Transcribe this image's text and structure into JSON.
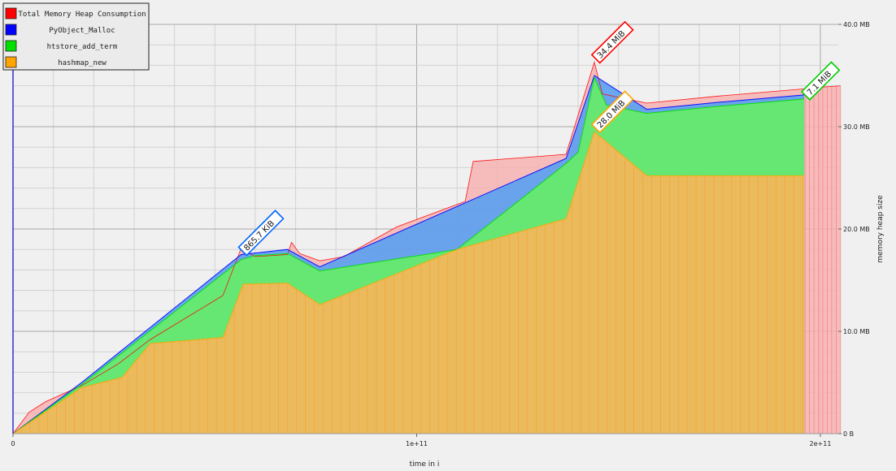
{
  "chart_data": {
    "type": "area",
    "xlabel": "time in i",
    "ylabel": "memory heap size",
    "xlim": [
      0,
      205000000000
    ],
    "ylim": [
      0,
      40
    ],
    "x_ticks": [
      {
        "value": 0,
        "label": "0"
      },
      {
        "value": 100000000000,
        "label": "1e+11"
      },
      {
        "value": 200000000000,
        "label": "2e+11"
      }
    ],
    "y_ticks": [
      {
        "value": 0,
        "label": "0 B"
      },
      {
        "value": 10,
        "label": "10.0 MB"
      },
      {
        "value": 20,
        "label": "20.0 MB"
      },
      {
        "value": 30,
        "label": "30.0 MB"
      },
      {
        "value": 40,
        "label": "40.0 MB"
      }
    ],
    "legend_position": "top-left",
    "series": [
      {
        "name": "Total Memory Heap Consumption",
        "color": "#ff0000",
        "fill": "#f7b3b3",
        "x": [
          0,
          4000000000,
          8000000000,
          17000000000,
          26000000000,
          34000000000,
          52000000000,
          56500000000,
          60000000000,
          68000000000,
          69000000000,
          71000000000,
          76000000000,
          82000000000,
          95000000000,
          112000000000,
          114000000000,
          137000000000,
          144000000000,
          146000000000,
          157000000000,
          175000000000,
          196000000000,
          198000000000,
          205000000000
        ],
        "values": [
          0,
          2.1,
          3.1,
          4.7,
          6.8,
          9.2,
          13.5,
          18.1,
          17.3,
          17.5,
          18.7,
          17.6,
          16.9,
          17.3,
          20.2,
          22.7,
          26.6,
          27.3,
          36.3,
          33.2,
          32.3,
          33.0,
          33.7,
          33.8,
          34.0
        ]
      },
      {
        "name": "PyObject_Malloc",
        "color": "#0000ff",
        "fill": "#5aa0f0",
        "x": [
          0,
          17000000000,
          56500000000,
          68000000000,
          76000000000,
          137000000000,
          144000000000,
          157000000000,
          175000000000,
          196000000000
        ],
        "values": [
          0,
          5.0,
          17.5,
          18.0,
          16.3,
          26.9,
          35.0,
          31.7,
          32.4,
          33.1
        ]
      },
      {
        "name": "htstore_add_term",
        "color": "#00e000",
        "fill": "#66ee66",
        "x": [
          0,
          17000000000,
          56500000000,
          60000000000,
          64000000000,
          68000000000,
          76000000000,
          110000000000,
          137000000000,
          140000000000,
          144000000000,
          147000000000,
          157000000000,
          175000000000,
          196000000000
        ],
        "values": [
          0,
          4.8,
          17.0,
          17.4,
          17.5,
          17.6,
          15.9,
          18.0,
          26.4,
          27.5,
          34.8,
          32.1,
          31.3,
          32.0,
          32.7
        ]
      },
      {
        "name": "hashmap_new",
        "color": "#ffa500",
        "fill": "#f9b55a",
        "x": [
          0,
          17000000000,
          27000000000,
          34000000000,
          52000000000,
          57000000000,
          68000000000,
          76000000000,
          110000000000,
          137000000000,
          144000000000,
          157000000000,
          196000000000
        ],
        "values": [
          0,
          4.5,
          5.5,
          8.8,
          9.4,
          14.6,
          14.7,
          12.6,
          18.0,
          21.0,
          29.5,
          25.2,
          25.2
        ]
      }
    ],
    "annotations": [
      {
        "text": "865.7 KiB",
        "x": 56500000000,
        "y": 17.5,
        "color": "#0066ff"
      },
      {
        "text": "34.4 MiB",
        "x": 144000000000,
        "y": 36.3,
        "color": "#ff0000"
      },
      {
        "text": "28.0 MiB",
        "x": 144000000000,
        "y": 29.5,
        "color": "#ffa500"
      },
      {
        "text": "7.1 MiB",
        "x": 196000000000,
        "y": 32.7,
        "color": "#00cc00"
      }
    ]
  }
}
